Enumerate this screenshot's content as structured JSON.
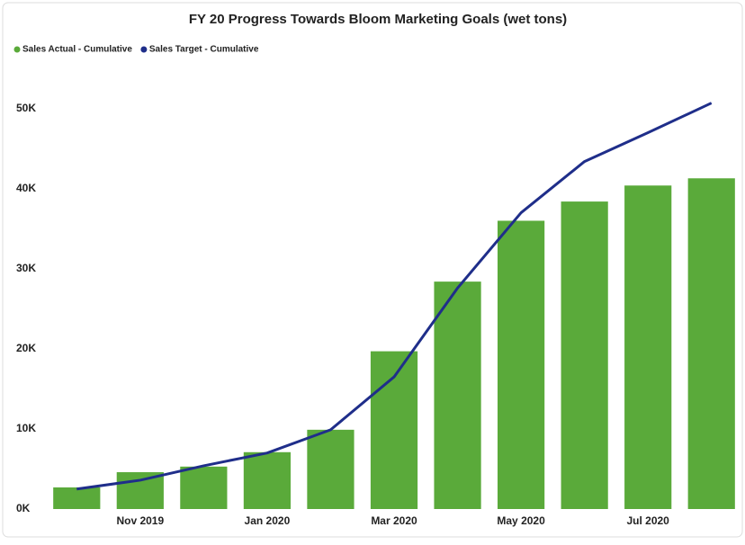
{
  "chart_data": {
    "type": "bar_line",
    "title": "FY 20 Progress Towards Bloom Marketing Goals (wet tons)",
    "categories": [
      null,
      "Nov 2019",
      null,
      "Jan 2020",
      null,
      "Mar 2020",
      null,
      "May 2020",
      null,
      "Jul 2020",
      null
    ],
    "series": [
      {
        "name": "Sales Actual - Cumulative",
        "color": "#5aaa3a",
        "kind": "bar",
        "values": [
          2700,
          4600,
          5300,
          7100,
          9900,
          19700,
          28400,
          36000,
          38400,
          40400,
          41300
        ]
      },
      {
        "name": "Sales Target - Cumulative",
        "color": "#1f2e8a",
        "kind": "line",
        "values": [
          2500,
          3600,
          5400,
          7000,
          9900,
          16500,
          27600,
          37000,
          43400,
          47000,
          50700
        ]
      }
    ],
    "ylim": [
      0,
      52000
    ],
    "yticks": [
      {
        "value": 0,
        "label": "0K"
      },
      {
        "value": 10000,
        "label": "10K"
      },
      {
        "value": 20000,
        "label": "20K"
      },
      {
        "value": 30000,
        "label": "30K"
      },
      {
        "value": 40000,
        "label": "40K"
      },
      {
        "value": 50000,
        "label": "50K"
      }
    ],
    "legend": "top-left"
  }
}
